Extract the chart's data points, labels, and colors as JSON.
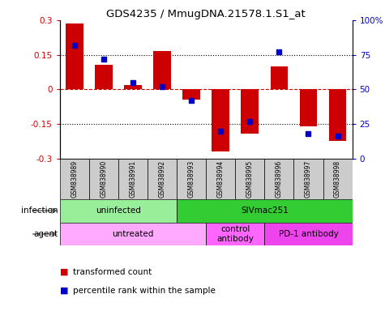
{
  "title": "GDS4235 / MmugDNA.21578.1.S1_at",
  "samples": [
    "GSM838989",
    "GSM838990",
    "GSM838991",
    "GSM838992",
    "GSM838993",
    "GSM838994",
    "GSM838995",
    "GSM838996",
    "GSM838997",
    "GSM838998"
  ],
  "bar_values": [
    0.285,
    0.105,
    0.02,
    0.168,
    -0.045,
    -0.27,
    -0.19,
    0.1,
    -0.16,
    -0.225
  ],
  "dot_values": [
    82,
    72,
    55,
    52,
    42,
    20,
    27,
    77,
    18,
    16
  ],
  "ylim_left": [
    -0.3,
    0.3
  ],
  "ylim_right": [
    0,
    100
  ],
  "yticks_left": [
    -0.3,
    -0.15,
    0,
    0.15,
    0.3
  ],
  "yticks_right": [
    0,
    25,
    50,
    75,
    100
  ],
  "bar_color": "#cc0000",
  "dot_color": "#0000cc",
  "infection_groups": [
    {
      "label": "uninfected",
      "start": 0,
      "end": 4,
      "color": "#99ee99"
    },
    {
      "label": "SIVmac251",
      "start": 4,
      "end": 10,
      "color": "#33cc33"
    }
  ],
  "agent_groups": [
    {
      "label": "untreated",
      "start": 0,
      "end": 5,
      "color": "#ffaaff"
    },
    {
      "label": "control\nantibody",
      "start": 5,
      "end": 7,
      "color": "#ff66ff"
    },
    {
      "label": "PD-1 antibody",
      "start": 7,
      "end": 10,
      "color": "#ee44ee"
    }
  ],
  "legend_items": [
    {
      "label": "transformed count",
      "color": "#cc0000"
    },
    {
      "label": "percentile rank within the sample",
      "color": "#0000cc"
    }
  ],
  "bar_width": 0.6,
  "sample_bg_color": "#cccccc",
  "infection_label": "infection",
  "agent_label": "agent"
}
